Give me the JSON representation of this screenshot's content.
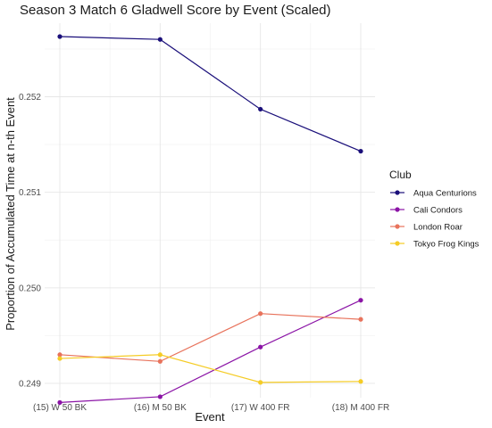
{
  "chart_data": {
    "type": "line",
    "title": "Season 3 Match 6 Gladwell Score by Event (Scaled)",
    "xlabel": "Event",
    "ylabel": "Proportion of Accumulated Time at n-th Event",
    "categories": [
      "(15) W 50 BK",
      "(16) M 50 BK",
      "(17) W 400 FR",
      "(18) M 400 FR"
    ],
    "ylim": [
      0.24885,
      0.25277
    ],
    "y_ticks": [
      0.249,
      0.25,
      0.251,
      0.252
    ],
    "y_tick_labels": [
      "0.249",
      "0.250",
      "0.251",
      "0.252"
    ],
    "grid": true,
    "legend": {
      "title": "Club",
      "position": "right"
    },
    "series": [
      {
        "name": "Aqua Centurions",
        "color": "#1a0f7a",
        "values": [
          0.25263,
          0.2526,
          0.25187,
          0.25143
        ]
      },
      {
        "name": "Cali Condors",
        "color": "#8b14a6",
        "values": [
          0.2488,
          0.24886,
          0.24938,
          0.24987
        ]
      },
      {
        "name": "London Roar",
        "color": "#e8735c",
        "values": [
          0.2493,
          0.24923,
          0.24973,
          0.24967
        ]
      },
      {
        "name": "Tokyo Frog Kings",
        "color": "#f5cc26",
        "values": [
          0.24926,
          0.2493,
          0.24901,
          0.24902
        ]
      }
    ]
  }
}
